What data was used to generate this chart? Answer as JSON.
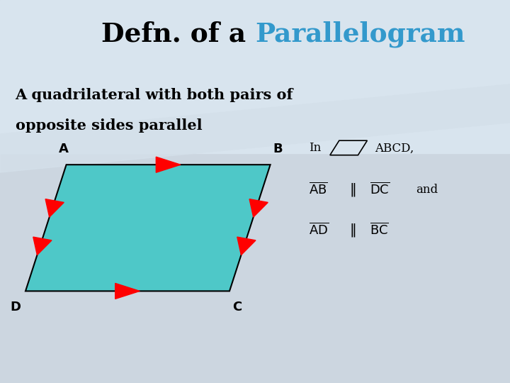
{
  "title_black": "Defn. of a ",
  "title_blue": "Parallelogram",
  "subtitle_line1": "A quadrilateral with both pairs of",
  "subtitle_line2": "opposite sides parallel",
  "bg_color": "#ccd6e0",
  "bg_color_light": "#d8e4ee",
  "parallelogram_color": "#4ec8c8",
  "arrow_color": "#cc0000",
  "text_color": "#000000",
  "blue_color": "#3399cc",
  "A": [
    0.13,
    0.57
  ],
  "B": [
    0.53,
    0.57
  ],
  "C": [
    0.45,
    0.24
  ],
  "D": [
    0.05,
    0.24
  ]
}
